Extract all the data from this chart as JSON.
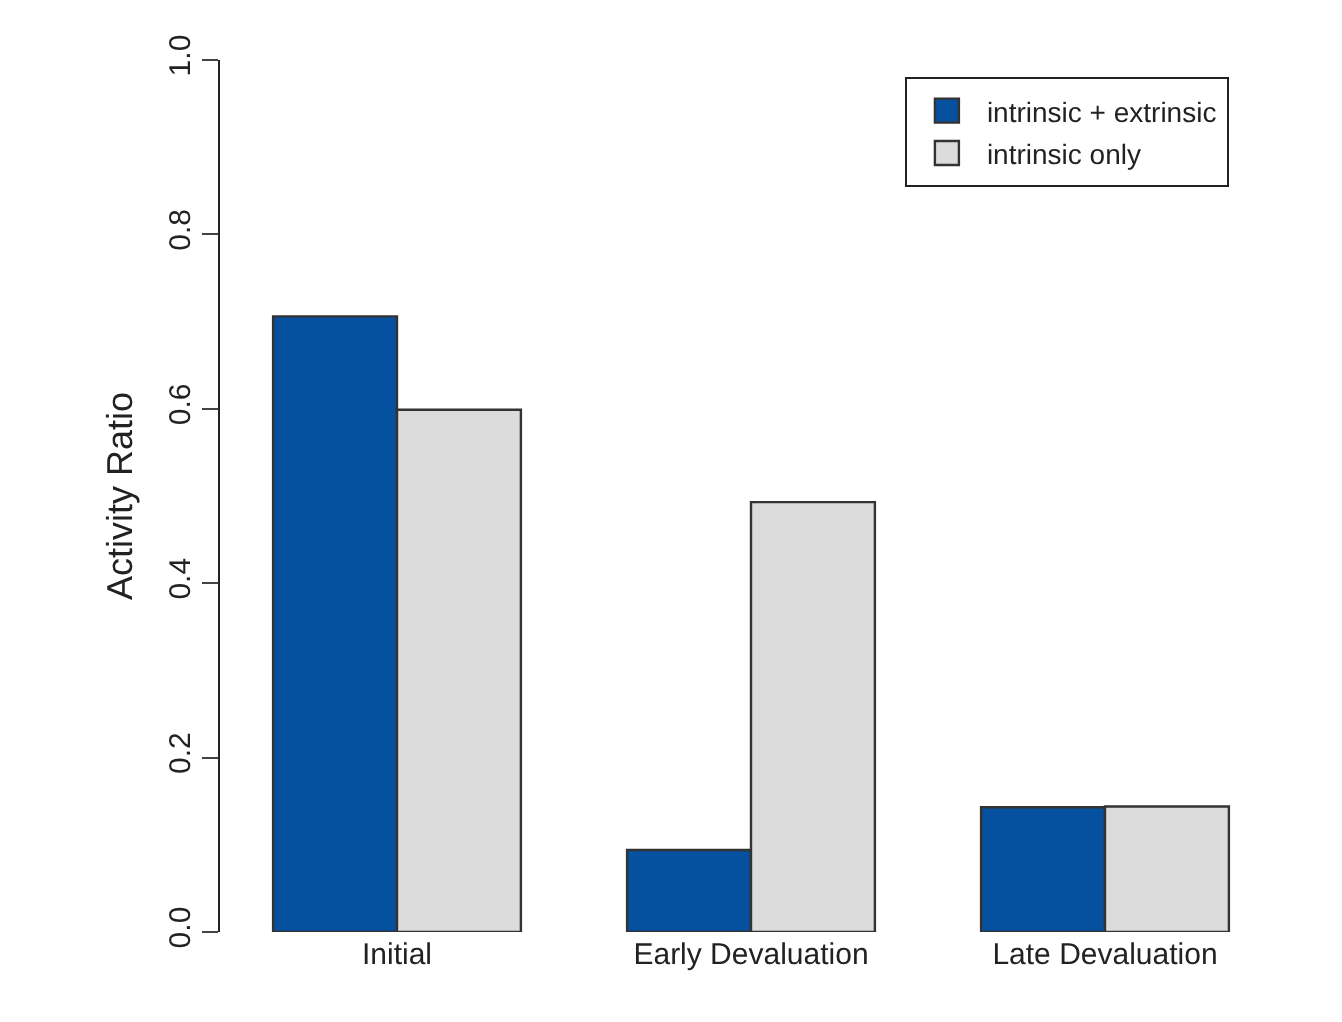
{
  "chart_data": {
    "type": "bar",
    "ylabel": "Activity Ratio",
    "categories": [
      "Initial",
      "Early Devaluation",
      "Late Devaluation"
    ],
    "series": [
      {
        "name": "intrinsic + extrinsic",
        "color": "#0650a0",
        "values": [
          0.706,
          0.094,
          0.143
        ]
      },
      {
        "name": "intrinsic only",
        "color": "#dcdcdc",
        "values": [
          0.599,
          0.493,
          0.144
        ]
      }
    ],
    "ylim": [
      0,
      1
    ],
    "yticks": [
      {
        "value": 0,
        "label": "0.0"
      },
      0.2,
      0.4,
      0.6,
      0.8,
      {
        "value": 1,
        "label": "1.0"
      }
    ],
    "legend": "top right"
  }
}
